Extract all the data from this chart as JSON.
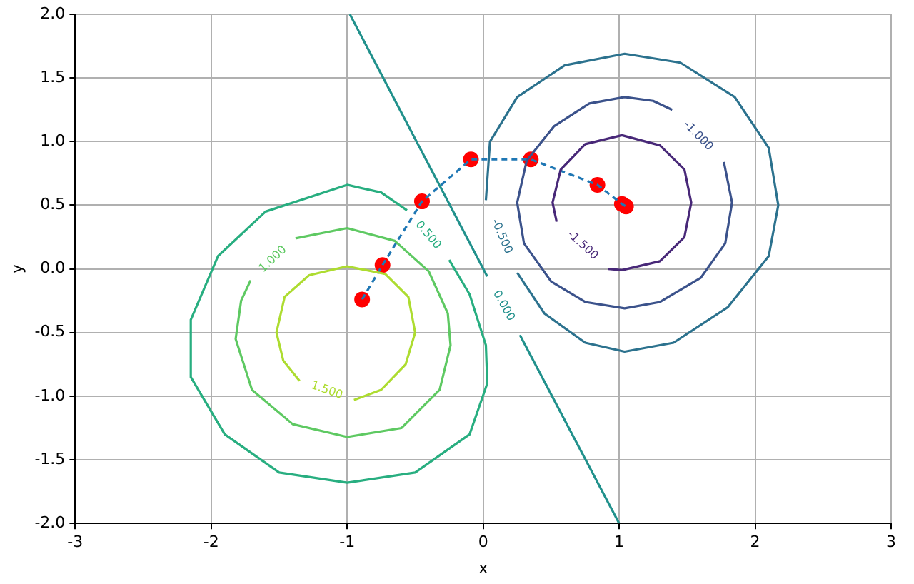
{
  "chart_data": {
    "type": "line",
    "xlabel": "x",
    "ylabel": "y",
    "xlim": [
      -3,
      3
    ],
    "ylim": [
      -2,
      2
    ],
    "xticks": [
      -3,
      -2,
      -1,
      0,
      1,
      2,
      3
    ],
    "yticks": [
      {
        "value": -2,
        "label": "-2.0"
      },
      {
        "value": -1.5,
        "label": "-1.5"
      },
      {
        "value": -1,
        "label": "-1.0"
      },
      {
        "value": -0.5,
        "label": "-0.5"
      },
      {
        "value": 0,
        "label": "0.0"
      },
      {
        "value": 0.5,
        "label": "0.5"
      },
      {
        "value": 1,
        "label": "1.0"
      },
      {
        "value": 1.5,
        "label": "1.5"
      },
      {
        "value": 2,
        "label": "2.0"
      }
    ],
    "grid": true,
    "marker": "none",
    "line_style": "solid",
    "series": [
      {
        "name": "-1.500",
        "color": "#482878",
        "x": [
          0.92,
          1.02,
          1.3,
          1.48,
          1.53,
          1.48,
          1.3,
          1.02,
          0.75,
          0.57,
          0.51,
          0.54
        ],
        "values": [
          0.0,
          -0.01,
          0.06,
          0.25,
          0.52,
          0.78,
          0.97,
          1.05,
          0.98,
          0.78,
          0.52,
          0.37
        ]
      },
      {
        "name": "-1.000",
        "color": "#3b528b",
        "x": [
          1.77,
          1.83,
          1.78,
          1.6,
          1.3,
          1.04,
          0.75,
          0.5,
          0.3,
          0.25,
          0.32,
          0.52,
          0.78,
          1.04,
          1.25,
          1.39
        ],
        "values": [
          0.84,
          0.52,
          0.2,
          -0.07,
          -0.26,
          -0.31,
          -0.26,
          -0.1,
          0.2,
          0.52,
          0.85,
          1.12,
          1.3,
          1.35,
          1.32,
          1.25
        ]
      },
      {
        "name": "-0.500",
        "color": "#2c728e",
        "x": [
          0.25,
          0.45,
          0.75,
          1.04,
          1.4,
          1.8,
          2.1,
          2.17,
          2.1,
          1.85,
          1.45,
          1.04,
          0.6,
          0.25,
          0.05,
          0.02
        ],
        "values": [
          -0.03,
          -0.35,
          -0.58,
          -0.65,
          -0.58,
          -0.3,
          0.1,
          0.5,
          0.95,
          1.35,
          1.62,
          1.69,
          1.6,
          1.35,
          1.0,
          0.54
        ]
      },
      {
        "name": "0.000",
        "color": "#21918c",
        "x": [
          -0.98,
          0.03,
          null,
          0.27,
          1.0
        ],
        "values": [
          2.0,
          -0.06,
          null,
          -0.52,
          -2.0
        ]
      },
      {
        "name": "0.500",
        "color": "#28ae80",
        "x": [
          -0.25,
          -0.1,
          0.02,
          0.03,
          -0.1,
          -0.5,
          -1.0,
          -1.5,
          -1.9,
          -2.15,
          -2.15,
          -1.95,
          -1.6,
          -1.0,
          -0.75,
          -0.56
        ],
        "values": [
          0.07,
          -0.2,
          -0.6,
          -0.9,
          -1.3,
          -1.6,
          -1.68,
          -1.6,
          -1.3,
          -0.85,
          -0.4,
          0.1,
          0.45,
          0.66,
          0.6,
          0.46
        ]
      },
      {
        "name": "1.000",
        "color": "#5ec962",
        "x": [
          -1.38,
          -1.0,
          -0.65,
          -0.4,
          -0.26,
          -0.24,
          -0.32,
          -0.6,
          -1.0,
          -1.4,
          -1.7,
          -1.82,
          -1.78,
          -1.71
        ],
        "values": [
          0.24,
          0.32,
          0.22,
          -0.02,
          -0.35,
          -0.6,
          -0.95,
          -1.25,
          -1.32,
          -1.22,
          -0.95,
          -0.55,
          -0.25,
          -0.09
        ]
      },
      {
        "name": "1.500",
        "color": "#addc30",
        "x": [
          -0.95,
          -0.75,
          -0.57,
          -0.5,
          -0.55,
          -0.72,
          -1.0,
          -1.28,
          -1.46,
          -1.52,
          -1.47,
          -1.35
        ],
        "values": [
          -1.03,
          -0.95,
          -0.75,
          -0.5,
          -0.22,
          -0.04,
          0.02,
          -0.05,
          -0.22,
          -0.5,
          -0.72,
          -0.88
        ]
      },
      {
        "color": "#1f77b4",
        "line_style": "dashed",
        "x": [
          -0.89,
          -0.74,
          -0.45,
          -0.09,
          0.35,
          0.84,
          1.02,
          1.05
        ],
        "values": [
          -0.24,
          0.03,
          0.53,
          0.86,
          0.86,
          0.66,
          0.51,
          0.49
        ]
      },
      {
        "type": "scatter",
        "color": "#ff0000",
        "marker": "circle",
        "x": [
          -0.89,
          -0.74,
          -0.45,
          -0.09,
          0.35,
          0.84,
          1.02,
          1.05
        ],
        "values": [
          -0.24,
          0.03,
          0.53,
          0.86,
          0.86,
          0.66,
          0.51,
          0.49
        ]
      }
    ]
  }
}
